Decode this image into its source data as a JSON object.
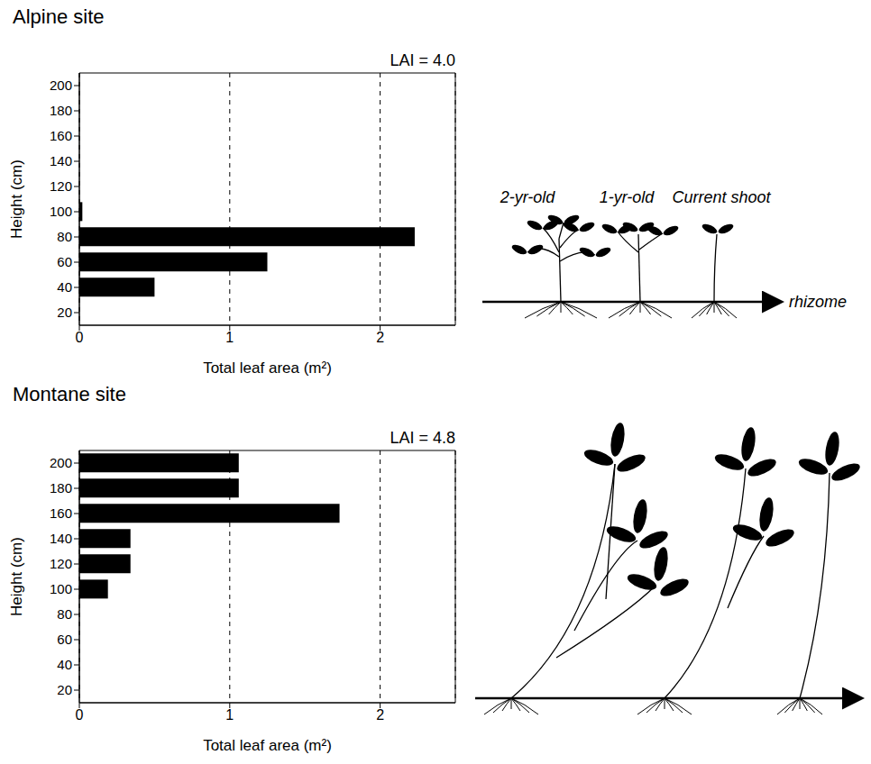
{
  "chart_data": [
    {
      "type": "bar",
      "title": "Alpine site",
      "orientation": "horizontal",
      "x_label": "Total leaf area (m²)",
      "y_label": "Height (cm)",
      "categories": [
        "20",
        "40",
        "60",
        "80",
        "100",
        "120",
        "140",
        "160",
        "180",
        "200"
      ],
      "values": [
        0,
        0.5,
        1.25,
        2.23,
        0.02,
        0,
        0,
        0,
        0,
        0
      ],
      "color": "#000000",
      "xlim": [
        0,
        2.5
      ],
      "xticks": [
        0,
        1,
        2
      ],
      "grid": true,
      "annotations": {
        "lai": "LAI = 4.0",
        "shoot_ages": [
          "2-yr-old",
          "1-yr-old",
          "Current shoot"
        ],
        "rhizome": "rhizome"
      }
    },
    {
      "type": "bar",
      "title": "Montane site",
      "orientation": "horizontal",
      "x_label": "Total leaf area (m²)",
      "y_label": "Height (cm)",
      "categories": [
        "20",
        "40",
        "60",
        "80",
        "100",
        "120",
        "140",
        "160",
        "180",
        "200"
      ],
      "values": [
        0,
        0,
        0,
        0,
        0.19,
        0.34,
        0.34,
        1.73,
        1.06,
        1.06
      ],
      "color": "#000000",
      "xlim": [
        0,
        2.5
      ],
      "xticks": [
        0,
        1,
        2
      ],
      "grid": true,
      "annotations": {
        "lai": "LAI = 4.8"
      }
    }
  ]
}
